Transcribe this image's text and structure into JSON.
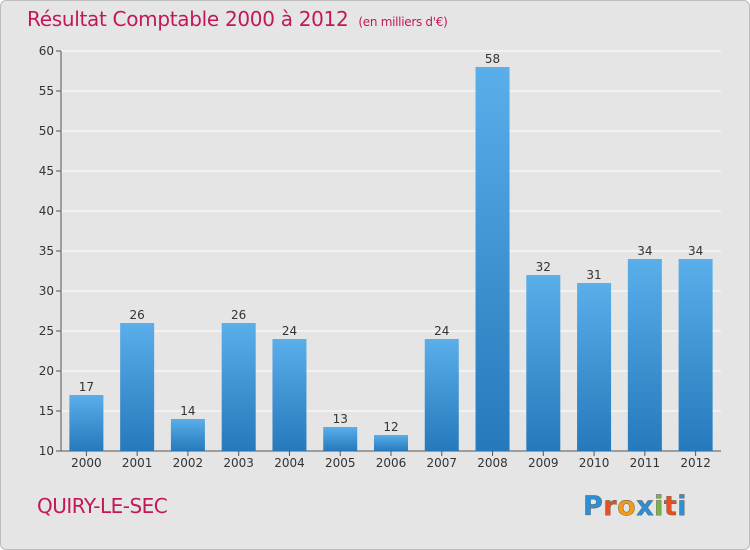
{
  "header": {
    "title": "Résultat Comptable 2000 à 2012",
    "unit": "(en milliers d'€)"
  },
  "footer": {
    "commune": "QUIRY-LE-SEC",
    "logo_letters": [
      "P",
      "r",
      "o",
      "x",
      "i",
      "t",
      "i"
    ],
    "logo_colors": [
      "#2d8fd5",
      "#e8501f",
      "#f29a1a",
      "#2d8fd5",
      "#7cb342",
      "#e8501f",
      "#2d8fd5"
    ]
  },
  "colors": {
    "title": "#c2185b",
    "bar_top": "#5aaeea",
    "bar_bottom": "#2679bb",
    "grid": "#ffffff",
    "background": "#e5e5e5"
  },
  "chart_data": {
    "type": "bar",
    "categories": [
      "2000",
      "2001",
      "2002",
      "2003",
      "2004",
      "2005",
      "2006",
      "2007",
      "2008",
      "2009",
      "2010",
      "2011",
      "2012"
    ],
    "values": [
      17,
      26,
      14,
      26,
      24,
      13,
      12,
      24,
      58,
      32,
      31,
      34,
      34
    ],
    "data_labels": [
      "17",
      "26",
      "14",
      "26",
      "24",
      "13",
      "12",
      "24",
      "58",
      "32",
      "31",
      "34",
      "34"
    ],
    "ylim": [
      10,
      60
    ],
    "yticks": [
      10,
      15,
      20,
      25,
      30,
      35,
      40,
      45,
      50,
      55,
      60
    ],
    "ytick_labels": [
      "10",
      "15",
      "20",
      "25",
      "30",
      "35",
      "40",
      "45",
      "50",
      "55",
      "60"
    ],
    "grid": true,
    "legend": false
  }
}
